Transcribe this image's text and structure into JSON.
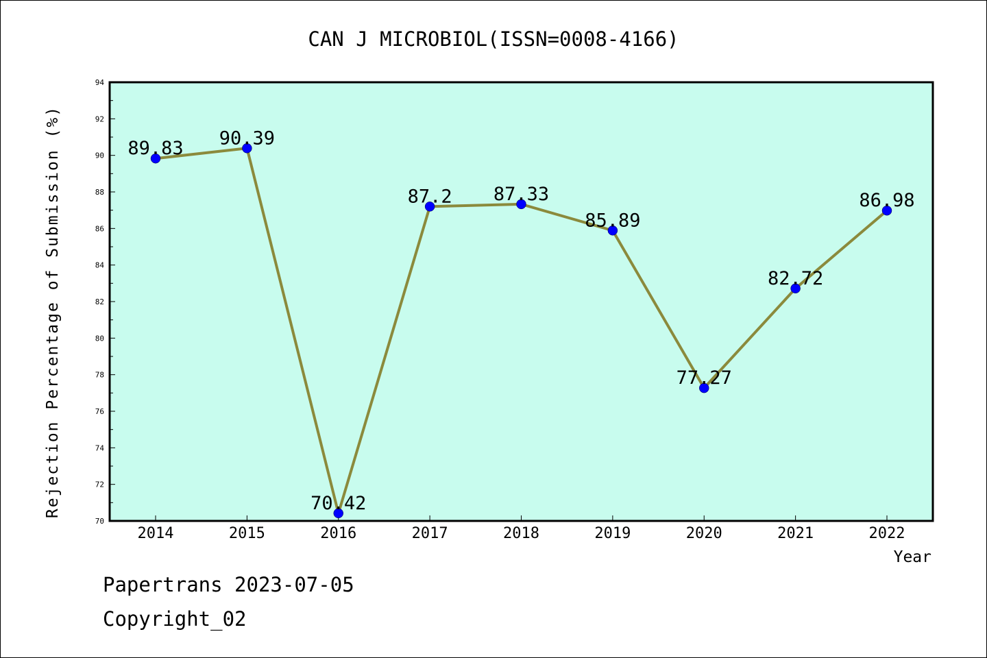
{
  "chart_data": {
    "type": "line",
    "title": "CAN J MICROBIOL(ISSN=0008-4166)",
    "xlabel": "Year",
    "ylabel": "Rejection Percentage of Submission (%)",
    "categories": [
      "2014",
      "2015",
      "2016",
      "2017",
      "2018",
      "2019",
      "2020",
      "2021",
      "2022"
    ],
    "series": [
      {
        "values": [
          89.83,
          90.39,
          70.42,
          87.2,
          87.33,
          85.89,
          77.27,
          82.72,
          86.98
        ],
        "labels": [
          "89.83",
          "90.39",
          "70.42",
          "87.2",
          "87.33",
          "85.89",
          "77.27",
          "82.72",
          "86.98"
        ]
      }
    ],
    "ylim": [
      70,
      94
    ],
    "yticks": [
      "70",
      "72",
      "74",
      "76",
      "78",
      "80",
      "82",
      "84",
      "86",
      "88",
      "90",
      "92",
      "94"
    ],
    "grid": false,
    "colors": {
      "plot_background": "#c8fcee",
      "line": "#8b8a3c",
      "marker": "#0000ff"
    }
  },
  "footer": {
    "line1": "Papertrans 2023-07-05",
    "line2": "Copyright_02"
  }
}
